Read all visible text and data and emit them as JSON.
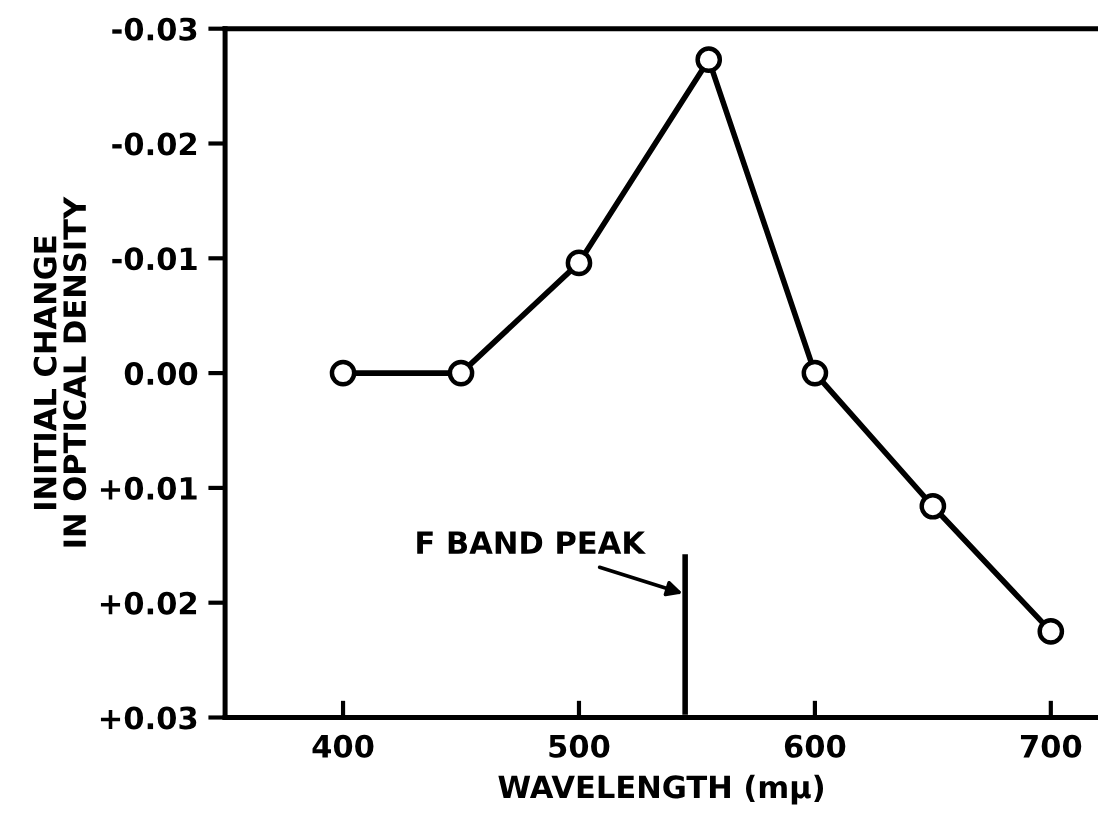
{
  "chart_data": {
    "type": "line",
    "xlabel": "WAVELENGTH (mμ)",
    "ylabel": "INITIAL CHANGE\nIN OPTICAL DENSITY",
    "x": [
      400,
      450,
      500,
      555,
      600,
      650,
      700
    ],
    "series": [
      {
        "color": "#000000",
        "values": [
          0,
          0,
          -0.0096,
          -0.0273,
          0,
          0.0116,
          0.0225
        ]
      }
    ],
    "marker": "circle",
    "line_style": "solid",
    "grid": false,
    "xlim": [
      350,
      720
    ],
    "xticks": [
      400,
      500,
      600,
      700
    ],
    "ylim": [
      0.03,
      -0.03
    ],
    "yticks": [
      {
        "value": -0.03,
        "label": "-0.03"
      },
      {
        "value": -0.02,
        "label": "-0.02"
      },
      {
        "value": -0.01,
        "label": "-0.01"
      },
      {
        "value": 0,
        "label": "0.00"
      },
      {
        "value": 0.01,
        "label": "+0.01"
      },
      {
        "value": 0.02,
        "label": "+0.02"
      },
      {
        "value": 0.03,
        "label": "+0.03"
      }
    ],
    "ref_lines": [
      {
        "axis": "x",
        "value": 545,
        "label": "F BAND PEAK",
        "color": "#000000",
        "line_style": "solid"
      }
    ]
  }
}
